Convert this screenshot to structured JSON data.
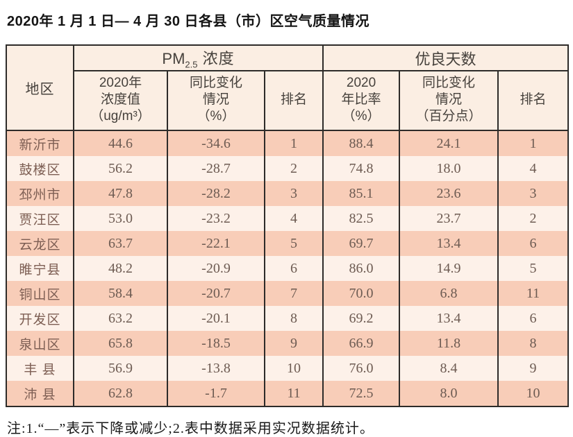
{
  "title": "2020年 1 月 1 日— 4 月 30 日各县（市）区空气质量情况",
  "table": {
    "region_header": "地区",
    "groups": [
      {
        "prefix": "PM",
        "sub": "2.5",
        "suffix": " 浓度"
      },
      {
        "label": "优良天数"
      }
    ],
    "sub_headers": [
      "2020年\n浓度值\n（ug/m³）",
      "同比变化\n情况\n（%）",
      "排名",
      "2020\n年比率\n（%）",
      "同比变化\n情况\n（百分点）",
      "排名"
    ],
    "rows": [
      {
        "region": "新沂市",
        "pm_value": "44.6",
        "pm_change": "-34.6",
        "pm_rank": "1",
        "days_ratio": "88.4",
        "days_change": "24.1",
        "days_rank": "1"
      },
      {
        "region": "鼓楼区",
        "pm_value": "56.2",
        "pm_change": "-28.7",
        "pm_rank": "2",
        "days_ratio": "74.8",
        "days_change": "18.0",
        "days_rank": "4"
      },
      {
        "region": "邳州市",
        "pm_value": "47.8",
        "pm_change": "-28.2",
        "pm_rank": "3",
        "days_ratio": "85.1",
        "days_change": "23.6",
        "days_rank": "3"
      },
      {
        "region": "贾汪区",
        "pm_value": "53.0",
        "pm_change": "-23.2",
        "pm_rank": "4",
        "days_ratio": "82.5",
        "days_change": "23.7",
        "days_rank": "2"
      },
      {
        "region": "云龙区",
        "pm_value": "63.7",
        "pm_change": "-22.1",
        "pm_rank": "5",
        "days_ratio": "69.7",
        "days_change": "13.4",
        "days_rank": "6"
      },
      {
        "region": "睢宁县",
        "pm_value": "48.2",
        "pm_change": "-20.9",
        "pm_rank": "6",
        "days_ratio": "86.0",
        "days_change": "14.9",
        "days_rank": "5"
      },
      {
        "region": "铜山区",
        "pm_value": "58.4",
        "pm_change": "-20.7",
        "pm_rank": "7",
        "days_ratio": "70.0",
        "days_change": "6.8",
        "days_rank": "11"
      },
      {
        "region": "开发区",
        "pm_value": "63.2",
        "pm_change": "-20.1",
        "pm_rank": "8",
        "days_ratio": "69.2",
        "days_change": "13.4",
        "days_rank": "6"
      },
      {
        "region": "泉山区",
        "pm_value": "65.8",
        "pm_change": "-18.5",
        "pm_rank": "9",
        "days_ratio": "66.9",
        "days_change": "11.8",
        "days_rank": "8"
      },
      {
        "region": "丰 县",
        "pm_value": "56.9",
        "pm_change": "-13.8",
        "pm_rank": "10",
        "days_ratio": "76.0",
        "days_change": "8.4",
        "days_rank": "9"
      },
      {
        "region": "沛 县",
        "pm_value": "62.8",
        "pm_change": "-1.7",
        "pm_rank": "11",
        "days_ratio": "72.5",
        "days_change": "8.0",
        "days_rank": "10"
      }
    ]
  },
  "footnote": "注:1.“—”表示下降或减少;2.表中数据采用实况数据统计。",
  "colors": {
    "row_odd_bg": "#f8cdb8",
    "row_even_bg": "#fdf1e9",
    "header_bg": "#fbeee3",
    "border": "#2d2b29",
    "data_text": "#6d5b52"
  }
}
